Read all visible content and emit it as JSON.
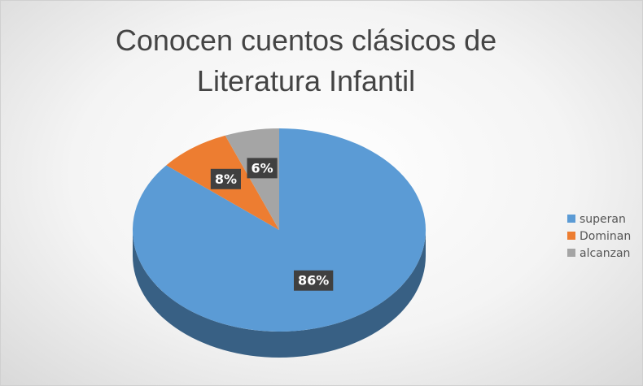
{
  "chart_data": {
    "type": "pie",
    "title": "Conocen cuentos clásicos de Literatura Infantil",
    "categories": [
      "superan",
      "Dominan",
      "alcanzan"
    ],
    "values": [
      86,
      8,
      6
    ],
    "value_labels": [
      "86%",
      "8%",
      "6%"
    ],
    "colors": [
      "#5b9bd5",
      "#ed7d31",
      "#a5a5a5"
    ],
    "legend": "right"
  }
}
